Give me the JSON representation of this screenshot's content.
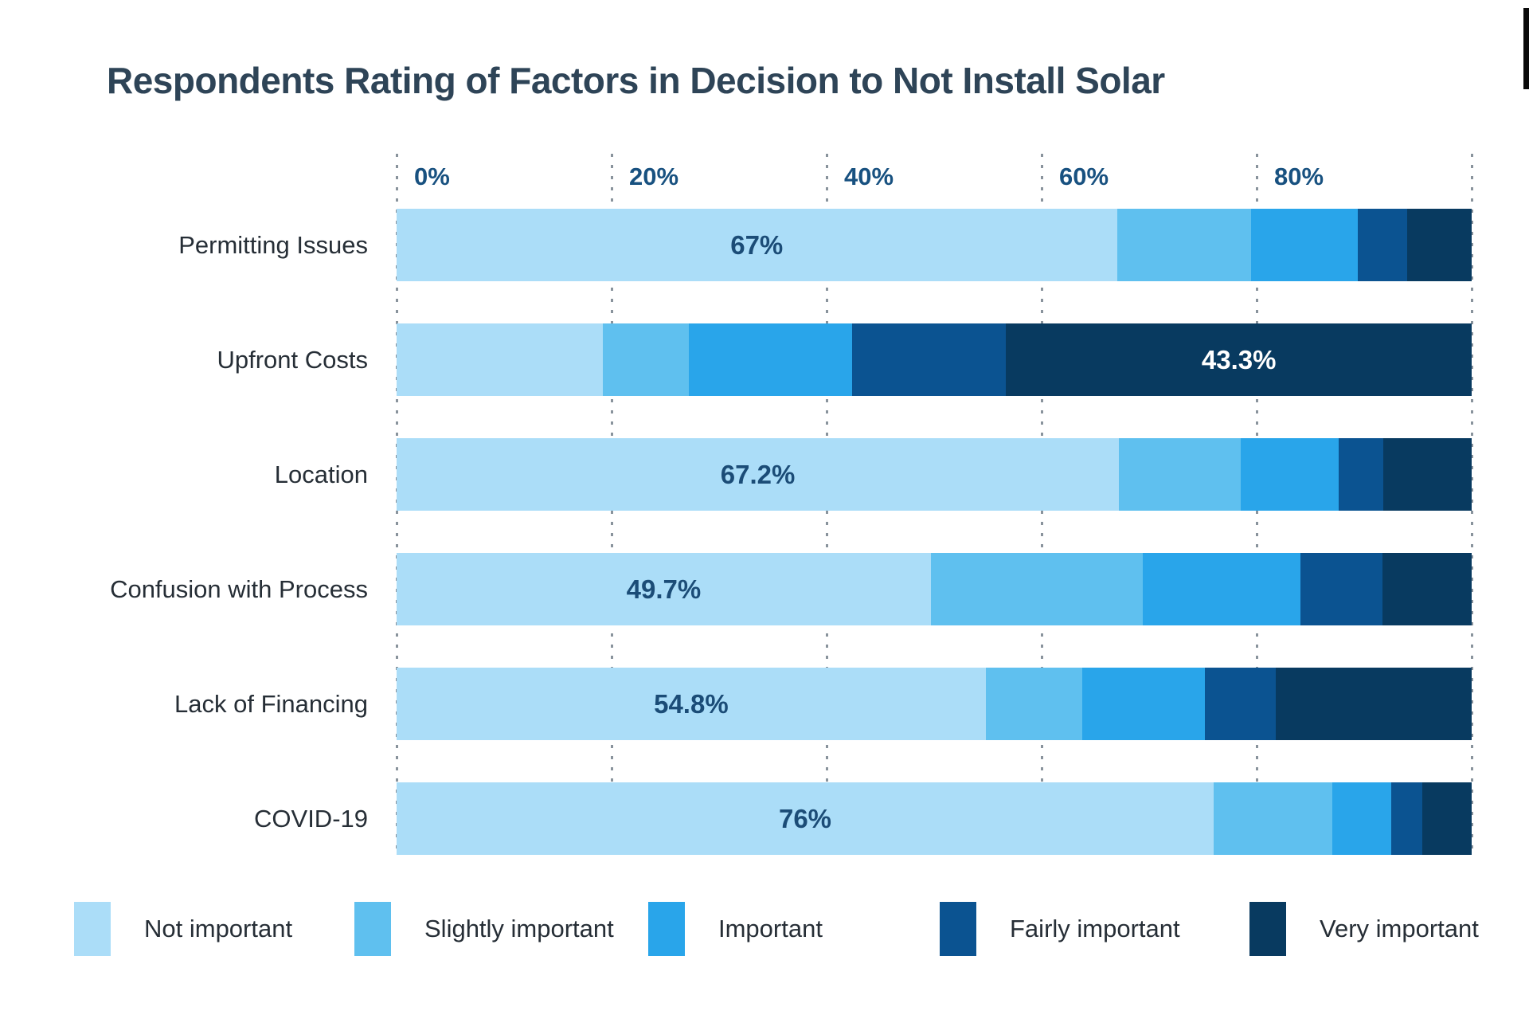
{
  "title": "Respondents Rating of Factors in Decision to Not Install Solar",
  "colors": {
    "background": "#FFFFFF",
    "title_text": "#2E4457",
    "tick_text": "#185180",
    "category_text": "#262E36",
    "legend_text": "#262E36",
    "value_label_navy": "#1B4C77",
    "value_label_white": "#FFFFFF",
    "gridline": "#89939C",
    "top_right_strip": "#0A0A0A"
  },
  "chart_data": {
    "type": "bar",
    "stacked": true,
    "orientation": "horizontal",
    "title": "Respondents Rating of Factors in Decision to Not Install Solar",
    "x_ticks": [
      "0%",
      "20%",
      "40%",
      "60%",
      "80%"
    ],
    "x_range": [
      0,
      100
    ],
    "grid": "dotted-vertical",
    "legend_position": "bottom",
    "categories": [
      "Permitting Issues",
      "Upfront Costs",
      "Location",
      "Confusion with Process",
      "Lack of Financing",
      "COVID-19"
    ],
    "series": [
      {
        "name": "Not important",
        "color": "#ABDDF8",
        "values": [
          67.0,
          19.2,
          67.2,
          49.7,
          54.8,
          76.0
        ]
      },
      {
        "name": "Slightly important",
        "color": "#5FC0EF",
        "values": [
          12.5,
          8.0,
          11.3,
          19.7,
          9.0,
          11.0
        ]
      },
      {
        "name": "Important",
        "color": "#29A5EA",
        "values": [
          9.9,
          15.2,
          9.1,
          14.7,
          11.4,
          5.5
        ]
      },
      {
        "name": "Fairly important",
        "color": "#0B5391",
        "values": [
          4.6,
          14.3,
          4.2,
          7.6,
          6.6,
          2.9
        ]
      },
      {
        "name": "Very important",
        "color": "#083A60",
        "values": [
          6.0,
          43.3,
          8.2,
          8.3,
          18.2,
          4.6
        ]
      }
    ],
    "bar_labels": [
      {
        "row": 0,
        "segment": 0,
        "text": "67%",
        "style": "navy"
      },
      {
        "row": 1,
        "segment": 4,
        "text": "43.3%",
        "style": "white"
      },
      {
        "row": 2,
        "segment": 0,
        "text": "67.2%",
        "style": "navy"
      },
      {
        "row": 3,
        "segment": 0,
        "text": "49.7%",
        "style": "navy"
      },
      {
        "row": 4,
        "segment": 0,
        "text": "54.8%",
        "style": "navy"
      },
      {
        "row": 5,
        "segment": 0,
        "text": "76%",
        "style": "navy"
      }
    ],
    "legend": [
      "Not important",
      "Slightly important",
      "Important",
      "Fairly important",
      "Very important"
    ]
  }
}
